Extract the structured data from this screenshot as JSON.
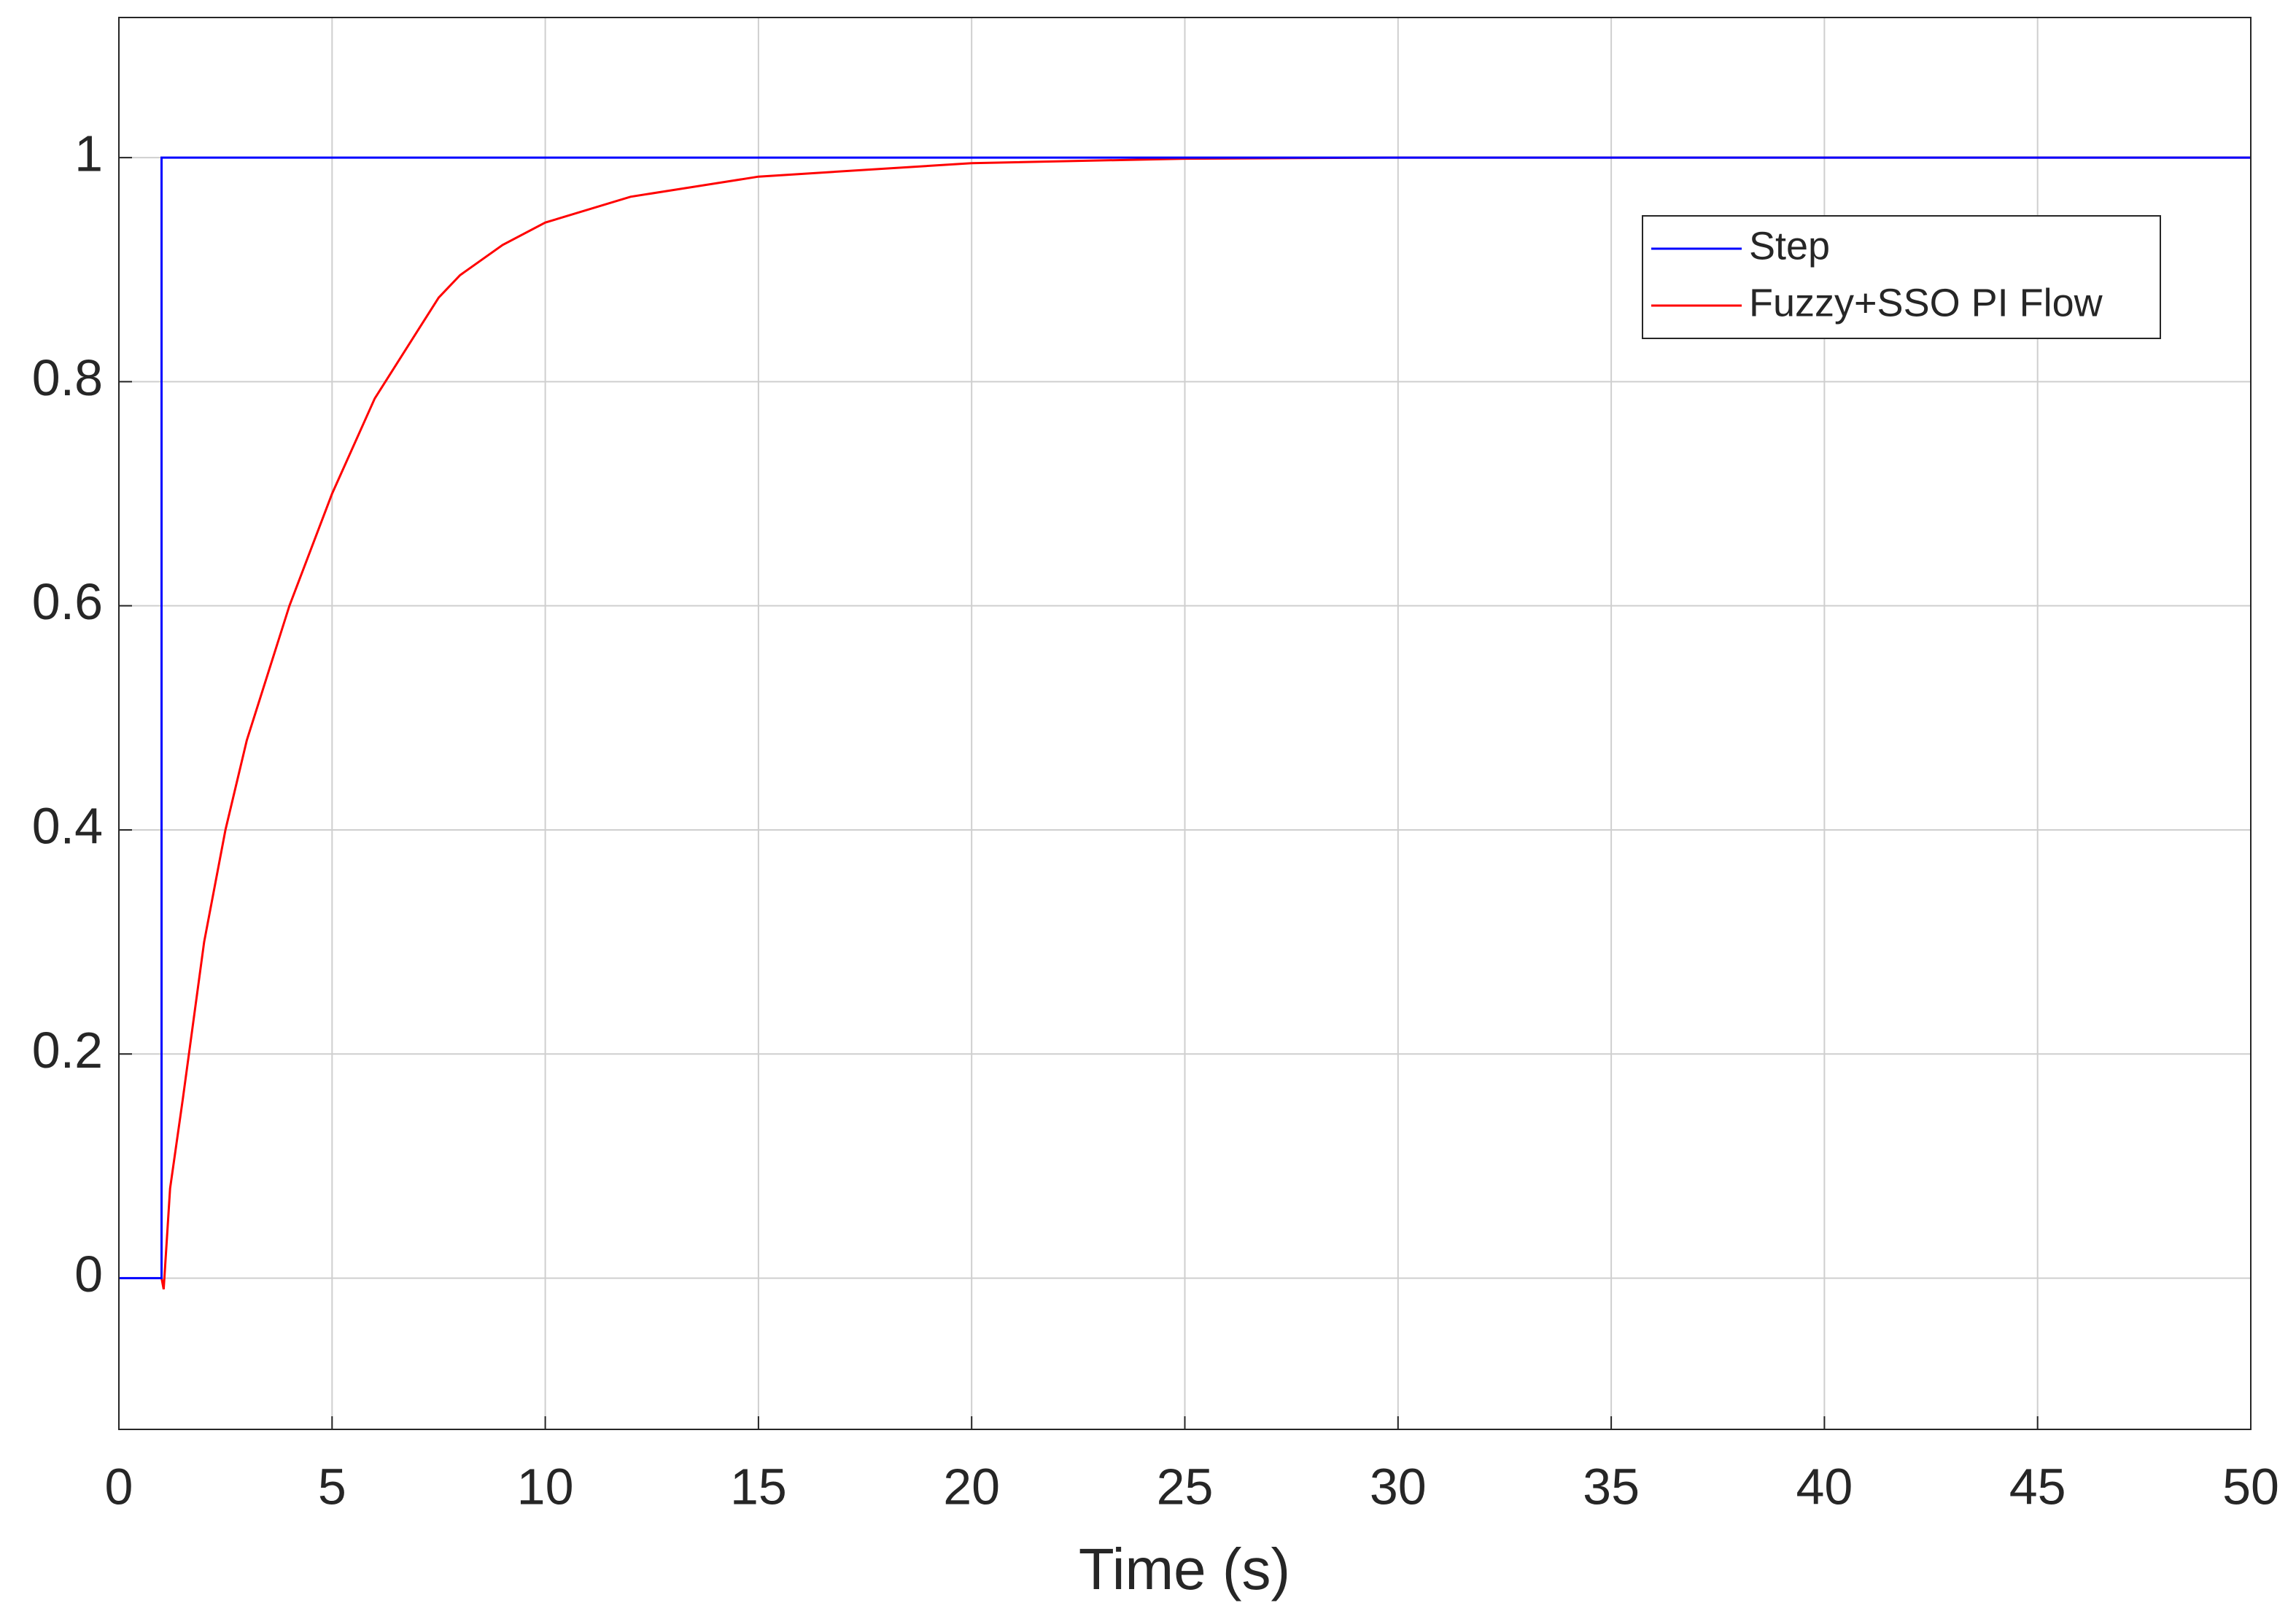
{
  "chart_data": {
    "type": "line",
    "xlabel": "Time (s)",
    "xlim": [
      0,
      50
    ],
    "xticks": [
      0,
      5,
      10,
      15,
      20,
      25,
      30,
      35,
      40,
      45,
      50
    ],
    "ylim": [
      -0.135,
      1.125
    ],
    "yticks": [
      0,
      0.2,
      0.4,
      0.6,
      0.8,
      1
    ],
    "grid": true,
    "legend_position": "upper right",
    "series": [
      {
        "name": "Step",
        "color": "#0000ff",
        "x": [
          0,
          1,
          1,
          50
        ],
        "values": [
          0,
          0,
          1,
          1
        ]
      },
      {
        "name": "Fuzzy+SSO PI Flow",
        "color": "#ff0000",
        "x": [
          1,
          1.05,
          1.2,
          1.5,
          2,
          2.5,
          3,
          4,
          5,
          6,
          7,
          7.5,
          8,
          9,
          10,
          12,
          15,
          20,
          25,
          30,
          50
        ],
        "values": [
          0,
          -0.01,
          0.08,
          0.16,
          0.3,
          0.4,
          0.48,
          0.6,
          0.7,
          0.785,
          0.845,
          0.875,
          0.895,
          0.922,
          0.942,
          0.965,
          0.983,
          0.995,
          0.999,
          1,
          1
        ]
      }
    ]
  }
}
